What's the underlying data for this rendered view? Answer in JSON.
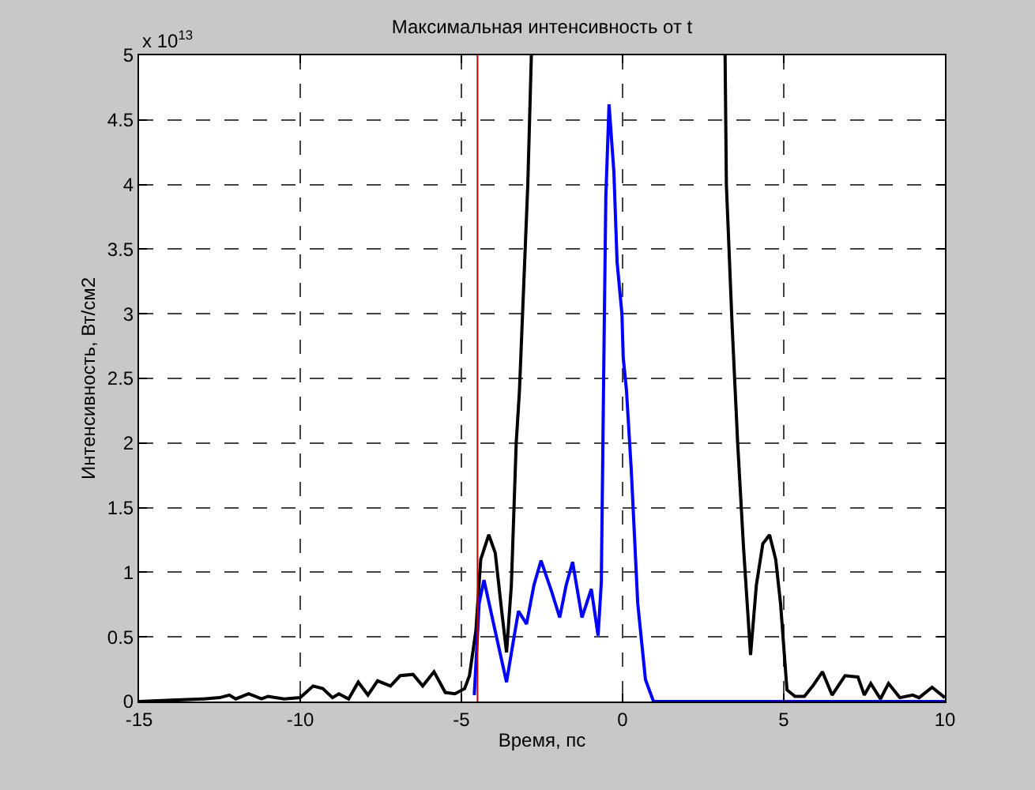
{
  "chart_data": {
    "type": "line",
    "title": "Максимальная интенсивность от t",
    "xlabel": "Время, пс",
    "ylabel": "Интенсивность, Вт/см2",
    "annotations": [
      "x 10$^{13}$"
    ],
    "series": [
      {
        "color": "#000000",
        "x": [
          -15,
          -14,
          -13,
          -12.5,
          -12.2,
          -12,
          -11.6,
          -11.2,
          -11,
          -10.5,
          -10,
          -9.6,
          -9.3,
          -9.0,
          -8.8,
          -8.5,
          -8.2,
          -7.9,
          -7.6,
          -7.2,
          -6.9,
          -6.5,
          -6.2,
          -5.85,
          -5.5,
          -5.2,
          -4.9,
          -4.75,
          -4.55,
          -4.4,
          -4.15,
          -3.95,
          -3.75,
          -3.6,
          -3.45,
          -3.3,
          -3.2,
          -2.94,
          -2.83,
          0,
          3.18,
          3.22,
          3.4,
          3.57,
          3.75,
          3.97,
          4.15,
          4.35,
          4.56,
          4.75,
          4.9,
          5.1,
          5.35,
          5.64,
          5.9,
          6.2,
          6.5,
          6.9,
          7.3,
          7.5,
          7.7,
          8.0,
          8.25,
          8.6,
          9.0,
          9.2,
          9.6,
          10
        ],
        "values": [
          0,
          0.01,
          0.02,
          0.03,
          0.05,
          0.02,
          0.06,
          0.02,
          0.04,
          0.02,
          0.03,
          0.12,
          0.1,
          0.03,
          0.06,
          0.02,
          0.15,
          0.05,
          0.16,
          0.12,
          0.2,
          0.21,
          0.12,
          0.23,
          0.07,
          0.06,
          0.1,
          0.2,
          0.55,
          1.1,
          1.29,
          1.15,
          0.7,
          0.38,
          0.9,
          2.0,
          2.4,
          4.0,
          5,
          null,
          5,
          4.0,
          2.9,
          2.0,
          1.2,
          0.36,
          0.9,
          1.22,
          1.29,
          1.1,
          0.76,
          0.09,
          0.04,
          0.04,
          0.12,
          0.23,
          0.05,
          0.2,
          0.19,
          0.05,
          0.14,
          0.02,
          0.14,
          0.03,
          0.05,
          0.03,
          0.11,
          0.03
        ]
      },
      {
        "color": "#0000ff",
        "x": [
          -4.6,
          -4.45,
          -4.3,
          -4.0,
          -3.6,
          -3.4,
          -3.23,
          -2.98,
          -2.75,
          -2.53,
          -2.2,
          -1.95,
          -1.75,
          -1.55,
          -1.26,
          -0.97,
          -0.76,
          -0.66,
          -0.57,
          -0.52,
          -0.42,
          -0.27,
          -0.17,
          -0.02,
          0.02,
          0.12,
          0.27,
          0.47,
          0.71,
          0.96,
          5,
          10
        ],
        "values": [
          0.05,
          0.76,
          0.94,
          0.6,
          0.15,
          0.45,
          0.7,
          0.6,
          0.9,
          1.09,
          0.85,
          0.65,
          0.9,
          1.08,
          0.65,
          0.87,
          0.51,
          0.92,
          2.87,
          3.9,
          4.62,
          4.1,
          3.4,
          3.0,
          2.66,
          2.41,
          1.79,
          0.76,
          0.17,
          0,
          0,
          0
        ]
      }
    ],
    "ref_lines": [
      {
        "axis": "x",
        "value": -4.5,
        "color": "#c00000"
      }
    ],
    "xlim": [
      -15,
      10
    ],
    "xticks": [
      -15,
      -10,
      -5,
      0,
      5,
      10
    ],
    "ylim": [
      0,
      5
    ],
    "yticks": [
      0,
      0.5,
      1,
      1.5,
      2,
      2.5,
      3,
      3.5,
      4,
      4.5,
      5
    ],
    "grid": true,
    "line_style": "solid",
    "marker": "none"
  }
}
